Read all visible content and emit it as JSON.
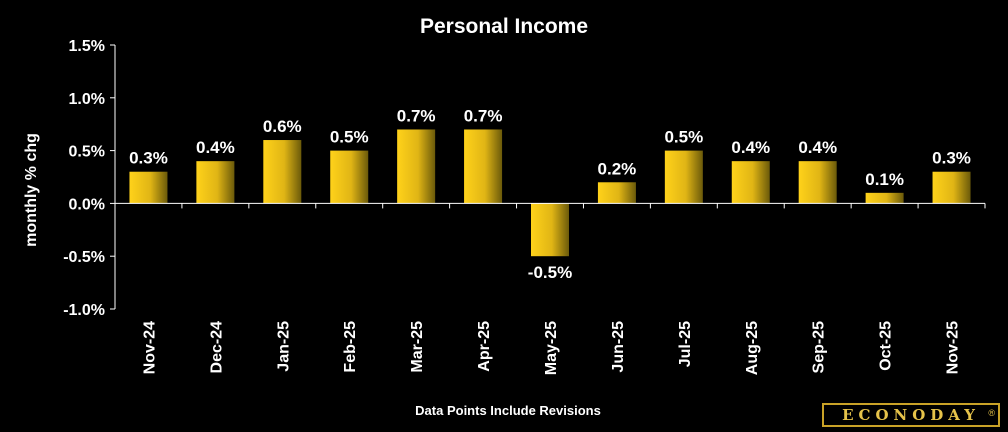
{
  "chart_data": {
    "type": "bar",
    "title": "Personal Income",
    "ylabel": "monthly % chg",
    "xlabel": "Data Points Include Revisions",
    "ylim": [
      -1.0,
      1.5
    ],
    "yticks": [
      "1.5%",
      "1.0%",
      "0.5%",
      "0.0%",
      "-0.5%",
      "-1.0%"
    ],
    "ytick_values": [
      1.5,
      1.0,
      0.5,
      0.0,
      -0.5,
      -1.0
    ],
    "categories": [
      "Nov-24",
      "Dec-24",
      "Jan-25",
      "Feb-25",
      "Mar-25",
      "Apr-25",
      "May-25",
      "Jun-25",
      "Jul-25",
      "Aug-25",
      "Sep-25",
      "Oct-25",
      "Nov-25"
    ],
    "values": [
      0.3,
      0.4,
      0.6,
      0.5,
      0.7,
      0.7,
      -0.5,
      0.2,
      0.5,
      0.4,
      0.4,
      0.1,
      0.3
    ],
    "data_labels": [
      "0.3%",
      "0.4%",
      "0.6%",
      "0.5%",
      "0.7%",
      "0.7%",
      "-0.5%",
      "0.2%",
      "0.5%",
      "0.4%",
      "0.4%",
      "0.1%",
      "0.3%"
    ],
    "grid": false,
    "colors": {
      "bar_light": "#ffd21a",
      "bar_dark": "#6b5a0a",
      "axis": "#ffffff",
      "background": "#000000"
    }
  },
  "brand": {
    "logo_text": "ECONODAY",
    "logo_mark": "®",
    "logo_color": "#e6c34a"
  }
}
